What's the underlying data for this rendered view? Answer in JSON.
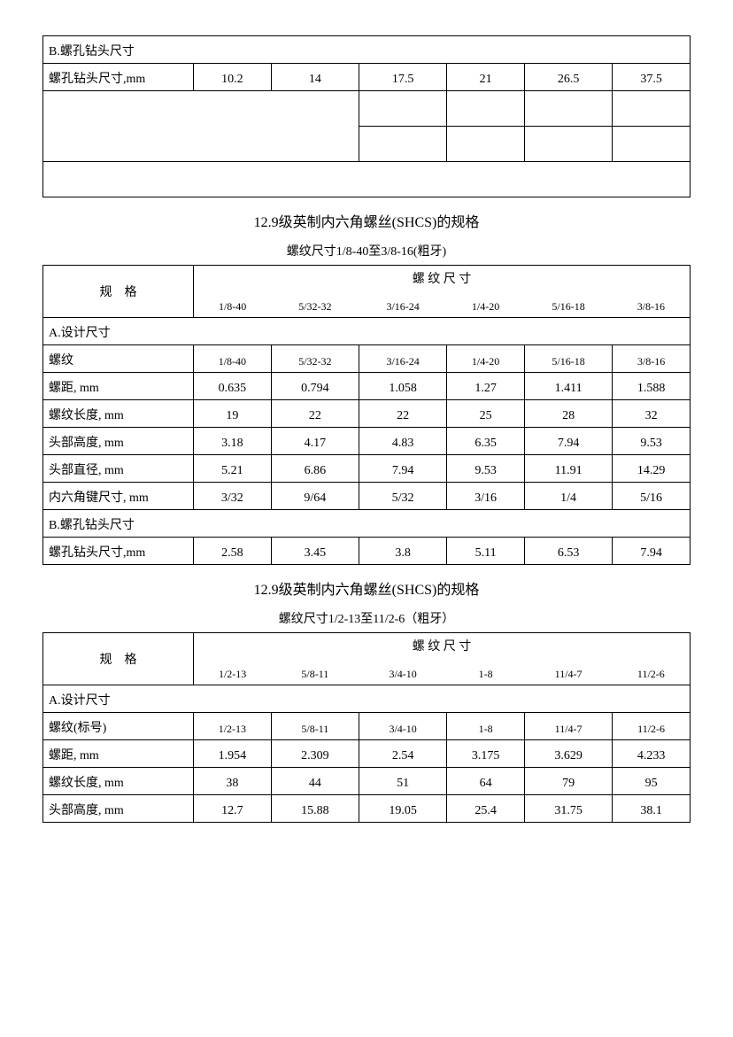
{
  "section1": {
    "header_b": "B.螺孔钻头尺寸",
    "row_label": "螺孔钻头尺寸,mm",
    "values": [
      "10.2",
      "14",
      "17.5",
      "21",
      "26.5",
      "37.5"
    ]
  },
  "section2": {
    "title": "12.9级英制内六角螺丝(SHCS)的规格",
    "subtitle": "螺纹尺寸1/8-40至3/8-16(粗牙)",
    "spec_label": "规　格",
    "thread_size_label": "螺 纹 尺 寸",
    "headers": [
      "1/8-40",
      "5/32-32",
      "3/16-24",
      "1/4-20",
      "5/16-18",
      "3/8-16"
    ],
    "section_a": "A.设计尺寸",
    "rows": [
      {
        "label": "螺纹",
        "v": [
          "1/8-40",
          "5/32-32",
          "3/16-24",
          "1/4-20",
          "5/16-18",
          "3/8-16"
        ]
      },
      {
        "label": "螺距, mm",
        "v": [
          "0.635",
          "0.794",
          "1.058",
          "1.27",
          "1.411",
          "1.588"
        ]
      },
      {
        "label": "螺纹长度, mm",
        "v": [
          "19",
          "22",
          "22",
          "25",
          "28",
          "32"
        ]
      },
      {
        "label": "头部高度, mm",
        "v": [
          "3.18",
          "4.17",
          "4.83",
          "6.35",
          "7.94",
          "9.53"
        ]
      },
      {
        "label": "头部直径, mm",
        "v": [
          "5.21",
          "6.86",
          "7.94",
          "9.53",
          "11.91",
          "14.29"
        ]
      },
      {
        "label": "内六角键尺寸, mm",
        "v": [
          "3/32",
          "9/64",
          "5/32",
          "3/16",
          "1/4",
          "5/16"
        ]
      }
    ],
    "section_b": "B.螺孔钻头尺寸",
    "row_b": {
      "label": "螺孔钻头尺寸,mm",
      "v": [
        "2.58",
        "3.45",
        "3.8",
        "5.11",
        "6.53",
        "7.94"
      ]
    }
  },
  "section3": {
    "title": "12.9级英制内六角螺丝(SHCS)的规格",
    "subtitle": "螺纹尺寸1/2-13至11/2-6（粗牙）",
    "spec_label": "规　格",
    "thread_size_label": "螺 纹 尺 寸",
    "headers": [
      "1/2-13",
      "5/8-11",
      "3/4-10",
      "1-8",
      "11/4-7",
      "11/2-6"
    ],
    "section_a": "A.设计尺寸",
    "rows": [
      {
        "label": "螺纹(标号)",
        "v": [
          "1/2-13",
          "5/8-11",
          "3/4-10",
          "1-8",
          "11/4-7",
          "11/2-6"
        ]
      },
      {
        "label": "螺距, mm",
        "v": [
          "1.954",
          "2.309",
          "2.54",
          "3.175",
          "3.629",
          "4.233"
        ]
      },
      {
        "label": "螺纹长度, mm",
        "v": [
          "38",
          "44",
          "51",
          "64",
          "79",
          "95"
        ]
      },
      {
        "label": "头部高度, mm",
        "v": [
          "12.7",
          "15.88",
          "19.05",
          "25.4",
          "31.75",
          "38.1"
        ]
      }
    ]
  }
}
